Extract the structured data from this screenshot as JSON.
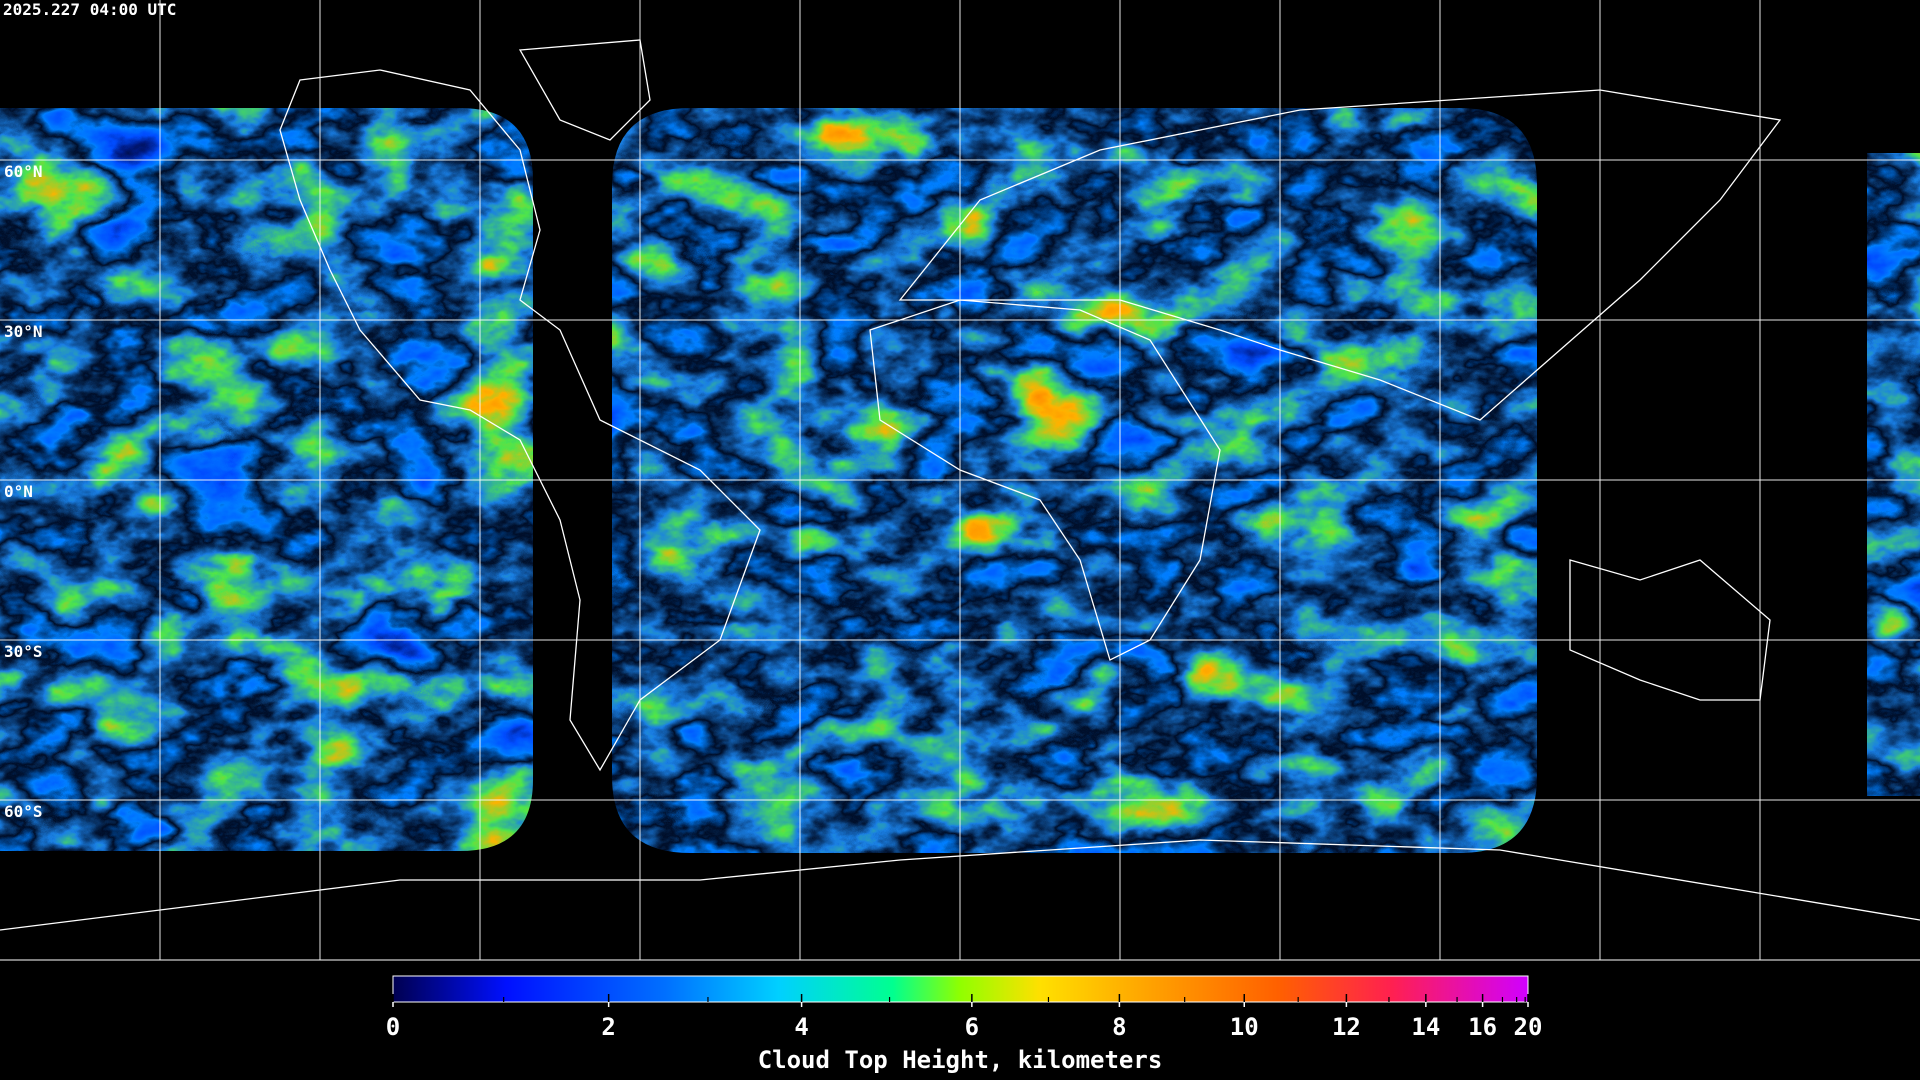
{
  "timestamp": "2025.227 04:00 UTC",
  "map": {
    "lat_ticks": [
      {
        "value": 60,
        "label": "60°N"
      },
      {
        "value": 30,
        "label": "30°N"
      },
      {
        "value": 0,
        "label": "0°N"
      },
      {
        "value": -30,
        "label": "30°S"
      },
      {
        "value": -60,
        "label": "60°S"
      }
    ]
  },
  "colorbar": {
    "title": "Cloud Top Height, kilometers",
    "ticks": [
      0,
      2,
      4,
      6,
      8,
      10,
      12,
      14,
      16,
      20
    ],
    "minor_ticks": [
      1,
      3,
      5,
      7,
      9,
      11,
      13,
      15,
      17,
      18,
      19
    ]
  }
}
